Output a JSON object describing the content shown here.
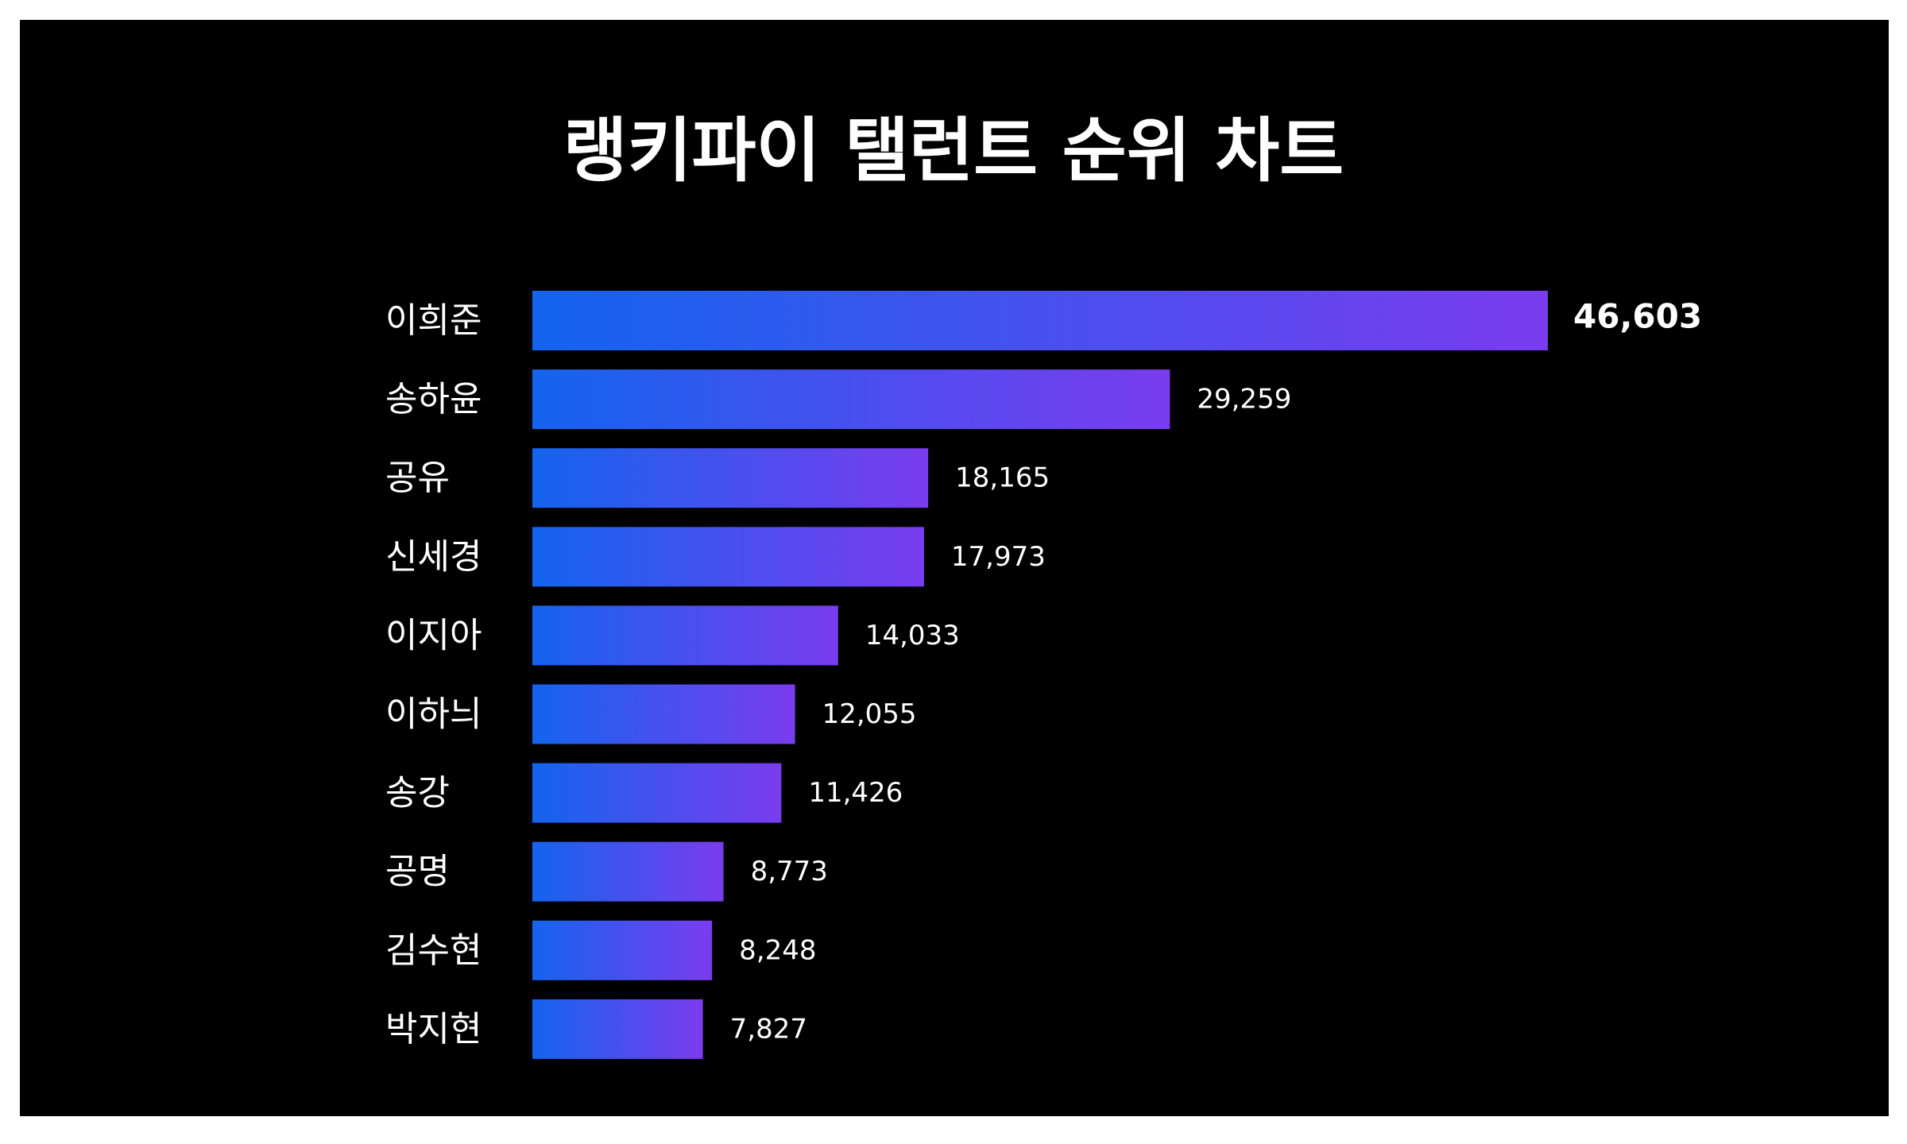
{
  "colors": {
    "background": "#000000",
    "page_border": "#ffffff",
    "text": "#ffffff",
    "bar_gradient_start": "#1464ee",
    "bar_gradient_end": "#7a3cee"
  },
  "chart_data": {
    "type": "bar",
    "orientation": "horizontal",
    "title": "랭키파이 탤런트 순위 차트",
    "categories": [
      "이희준",
      "송하윤",
      "공유",
      "신세경",
      "이지아",
      "이하늬",
      "송강",
      "공명",
      "김수현",
      "박지현"
    ],
    "values": [
      46603,
      29259,
      18165,
      17973,
      14033,
      12055,
      11426,
      8773,
      8248,
      7827
    ],
    "value_labels": [
      "46,603",
      "29,259",
      "18,165",
      "17,973",
      "14,033",
      "12,055",
      "11,426",
      "8,773",
      "8,248",
      "7,827"
    ],
    "xlim": [
      0,
      46603
    ],
    "grid": false,
    "legend": "none",
    "xlabel": "",
    "ylabel": ""
  }
}
